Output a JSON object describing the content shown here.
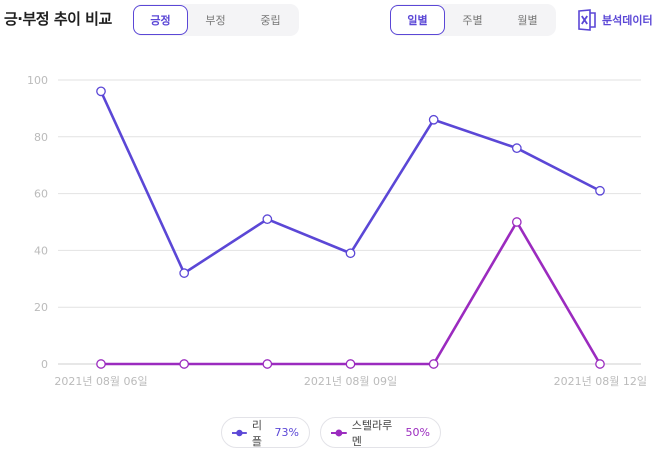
{
  "header": {
    "title": "긍·부정 추이 비교",
    "sentiment_tabs": [
      "긍정",
      "부정",
      "중립"
    ],
    "sentiment_active": 0,
    "period_tabs": [
      "일별",
      "주별",
      "월별"
    ],
    "period_active": 0,
    "export_label": "분석데이터"
  },
  "colors": {
    "accent": "#5b47d6",
    "series1": "#5b47d6",
    "series2": "#9b2bbf",
    "grid": "#e2e2e2",
    "tick": "#bbbbbb"
  },
  "chart_data": {
    "type": "line",
    "x": [
      "2021-08-06",
      "2021-08-07",
      "2021-08-08",
      "2021-08-09",
      "2021-08-10",
      "2021-08-11",
      "2021-08-12"
    ],
    "x_tick_labels": [
      "2021년 08월 06일",
      "2021년 08월 09일",
      "2021년 08월 12일"
    ],
    "x_tick_positions": [
      0,
      3,
      6
    ],
    "series": [
      {
        "name": "리플",
        "share": "73%",
        "values": [
          96,
          32,
          51,
          39,
          86,
          76,
          61
        ]
      },
      {
        "name": "스텔라루멘",
        "share": "50%",
        "values": [
          0,
          0,
          0,
          0,
          0,
          50,
          0
        ]
      }
    ],
    "ylim": [
      0,
      100
    ],
    "yticks": [
      0,
      20,
      40,
      60,
      80,
      100
    ],
    "grid": true,
    "legend_position": "bottom"
  }
}
